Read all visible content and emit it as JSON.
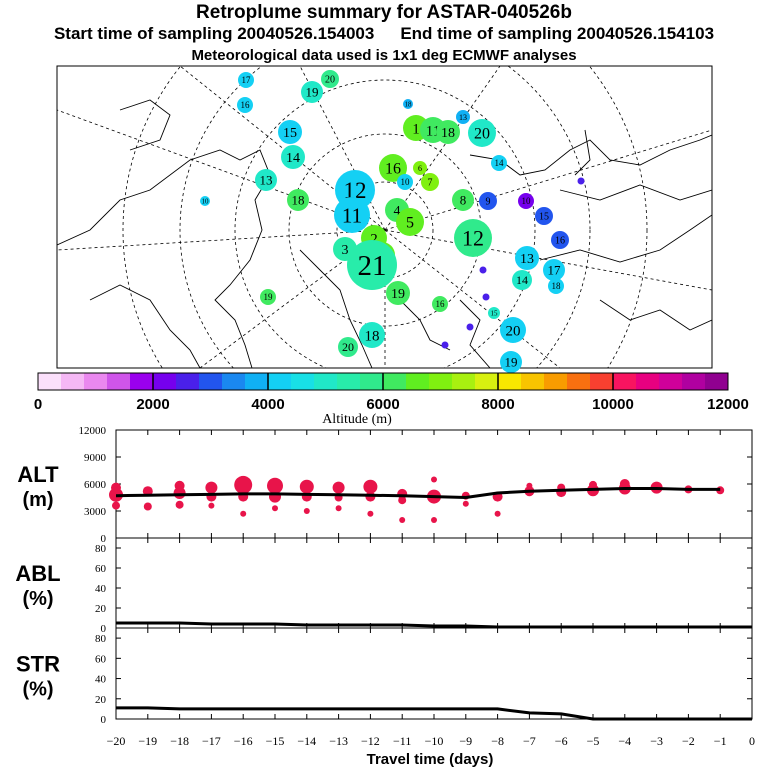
{
  "header": {
    "title": "Retroplume summary for ASTAR-040526b",
    "start_label": "Start time of sampling 20040526.154003",
    "end_label": "End time of sampling 20040526.154103",
    "met_label": "Meteorological data used is 1x1 deg ECMWF analyses"
  },
  "colorbar": {
    "ticks": [
      "0",
      "2000",
      "4000",
      "6000",
      "8000",
      "10000",
      "12000"
    ],
    "label": "Altitude (m)",
    "colors": [
      "#fbe0fb",
      "#f5b8f5",
      "#ea88ef",
      "#cf55ea",
      "#9a00ee",
      "#7600ee",
      "#4a20ea",
      "#2255ee",
      "#1a88f0",
      "#10b0f4",
      "#14d0f4",
      "#18e0e6",
      "#20e8c8",
      "#28ecaa",
      "#30ea8c",
      "#40ea60",
      "#60ee20",
      "#80f010",
      "#a8f010",
      "#d8f010",
      "#f8e800",
      "#f8c400",
      "#f89c00",
      "#f87010",
      "#f84030",
      "#f81460",
      "#e80080",
      "#d0009a",
      "#b000a0",
      "#900090"
    ]
  },
  "map": {
    "markers": [
      {
        "label": "17",
        "color": "#14d0f4"
      },
      {
        "label": "20",
        "color": "#30ea8c"
      },
      {
        "label": "16",
        "color": "#14d0f4"
      },
      {
        "label": "19",
        "color": "#20e8c8"
      },
      {
        "label": "18",
        "color": "#10b0f4"
      },
      {
        "label": "13",
        "color": "#10b0f4"
      },
      {
        "label": "15",
        "color": "#14d0f4"
      },
      {
        "label": "14",
        "color": "#20e8c8"
      },
      {
        "label": "13",
        "color": "#20e8c8"
      },
      {
        "label": "12",
        "color": "#14d0f4"
      },
      {
        "label": "11",
        "color": "#14d0f4"
      },
      {
        "label": "10",
        "color": "#14d0f4"
      },
      {
        "label": "18",
        "color": "#40ea60"
      },
      {
        "label": "1",
        "color": "#60ee20"
      },
      {
        "label": "16",
        "color": "#60ee20"
      },
      {
        "label": "11",
        "color": "#40ea60"
      },
      {
        "label": "18",
        "color": "#40ea60"
      },
      {
        "label": "20",
        "color": "#20e8c8"
      },
      {
        "label": "14",
        "color": "#14d0f4"
      },
      {
        "label": "7",
        "color": "#80f010"
      },
      {
        "label": "8",
        "color": "#40ea60"
      },
      {
        "label": "9",
        "color": "#2255ee"
      },
      {
        "label": "10",
        "color": "#7600ee"
      },
      {
        "label": "15",
        "color": "#2255ee"
      },
      {
        "label": "16",
        "color": "#2255ee"
      },
      {
        "label": "12",
        "color": "#30ea8c"
      },
      {
        "label": "13",
        "color": "#14d0f4"
      },
      {
        "label": "14",
        "color": "#20e8c8"
      },
      {
        "label": "17",
        "color": "#14d0f4"
      },
      {
        "label": "18",
        "color": "#14d0f4"
      },
      {
        "label": "4",
        "color": "#40ea60"
      },
      {
        "label": "2",
        "color": "#60ee20"
      },
      {
        "label": "1",
        "color": "#60ee20"
      },
      {
        "label": "21",
        "color": "#28ecaa"
      },
      {
        "label": "3",
        "color": "#28ecaa"
      },
      {
        "label": "19",
        "color": "#40ea60"
      },
      {
        "label": "16",
        "color": "#40ea60"
      },
      {
        "label": "15",
        "color": "#20e8c8"
      },
      {
        "label": "20",
        "color": "#14d0f4"
      },
      {
        "label": "18",
        "color": "#20e8c8"
      },
      {
        "label": "20",
        "color": "#30ea8c"
      },
      {
        "label": "19",
        "color": "#14d0f4"
      },
      {
        "label": "19",
        "color": "#40ea60"
      },
      {
        "label": "10",
        "color": "#14d0f4"
      },
      {
        "label": "6",
        "color": "#80f010"
      },
      {
        "label": "5",
        "color": "#60ee20"
      }
    ]
  },
  "chart_data": [
    {
      "type": "scatter",
      "panel": "ALT",
      "ylabel": "ALT (m)",
      "ylim": [
        0,
        12000
      ],
      "yticks": [
        "0",
        "3000",
        "6000",
        "9000",
        "12000"
      ],
      "marker_color": "#e8144a",
      "x": [
        -20,
        -19,
        -18,
        -17,
        -16,
        -15,
        -14,
        -13,
        -12,
        -11,
        -10,
        -9,
        -8,
        -7,
        -6,
        -5,
        -4,
        -3,
        -2,
        -1
      ],
      "median": [
        4700,
        4750,
        4800,
        4850,
        4900,
        4900,
        4850,
        4800,
        4750,
        4700,
        4600,
        4500,
        5000,
        5200,
        5300,
        5400,
        5500,
        5500,
        5400,
        5400
      ],
      "points": [
        [
          -20,
          4800
        ],
        [
          -20,
          5600
        ],
        [
          -20,
          3600
        ],
        [
          -19,
          5200
        ],
        [
          -19,
          3500
        ],
        [
          -18,
          5000
        ],
        [
          -18,
          5800
        ],
        [
          -18,
          3700
        ],
        [
          -17,
          5600
        ],
        [
          -17,
          4600
        ],
        [
          -17,
          3600
        ],
        [
          -16,
          5900
        ],
        [
          -16,
          4600
        ],
        [
          -16,
          2700
        ],
        [
          -15,
          5800
        ],
        [
          -15,
          4600
        ],
        [
          -15,
          3300
        ],
        [
          -14,
          5700
        ],
        [
          -14,
          4600
        ],
        [
          -14,
          3000
        ],
        [
          -13,
          5600
        ],
        [
          -13,
          4500
        ],
        [
          -13,
          3300
        ],
        [
          -12,
          5700
        ],
        [
          -12,
          4600
        ],
        [
          -12,
          2700
        ],
        [
          -11,
          4900
        ],
        [
          -11,
          4200
        ],
        [
          -11,
          2000
        ],
        [
          -10,
          4600
        ],
        [
          -10,
          6500
        ],
        [
          -10,
          2000
        ],
        [
          -9,
          4700
        ],
        [
          -9,
          3800
        ],
        [
          -8,
          4600
        ],
        [
          -8,
          2700
        ],
        [
          -7,
          5200
        ],
        [
          -7,
          5800
        ],
        [
          -6,
          5100
        ],
        [
          -6,
          5600
        ],
        [
          -5,
          5300
        ],
        [
          -5,
          5900
        ],
        [
          -4,
          5500
        ],
        [
          -4,
          6000
        ],
        [
          -3,
          5600
        ],
        [
          -2,
          5400
        ],
        [
          -1,
          5300
        ]
      ],
      "point_sizes": [
        7,
        5,
        4,
        5,
        4,
        6,
        5,
        4,
        6,
        5,
        3,
        9,
        5,
        3,
        8,
        6,
        3,
        7,
        5,
        3,
        6,
        4,
        3,
        7,
        5,
        3,
        5,
        4,
        3,
        7,
        3,
        3,
        4,
        3,
        5,
        3,
        5,
        3,
        5,
        4,
        6,
        4,
        6,
        5,
        6,
        4,
        4
      ]
    },
    {
      "type": "line",
      "panel": "ABL",
      "ylabel": "ABL (%)",
      "ylim": [
        0,
        90
      ],
      "yticks": [
        "0",
        "20",
        "40",
        "60",
        "80"
      ],
      "x": [
        -20,
        -19,
        -18,
        -17,
        -16,
        -15,
        -14,
        -13,
        -12,
        -11,
        -10,
        -9,
        -8,
        -7,
        -6,
        -5,
        -4,
        -3,
        -2,
        -1,
        0
      ],
      "values": [
        5,
        5,
        5,
        4,
        4,
        4,
        3,
        3,
        3,
        3,
        2,
        2,
        1,
        1,
        1,
        1,
        1,
        1,
        1,
        1,
        1
      ]
    },
    {
      "type": "line",
      "panel": "STR",
      "ylabel": "STR (%)",
      "ylim": [
        0,
        90
      ],
      "yticks": [
        "0",
        "20",
        "40",
        "60",
        "80"
      ],
      "x": [
        -20,
        -19,
        -18,
        -17,
        -16,
        -15,
        -14,
        -13,
        -12,
        -11,
        -10,
        -9,
        -8,
        -7,
        -6,
        -5,
        -4,
        -3,
        -2,
        -1,
        0
      ],
      "values": [
        11,
        11,
        10,
        10,
        10,
        10,
        10,
        10,
        10,
        10,
        10,
        10,
        10,
        6,
        5,
        0,
        0,
        0,
        0,
        0,
        0
      ],
      "xlabel": "Travel time (days)",
      "xticks": [
        "−20",
        "−19",
        "−18",
        "−17",
        "−16",
        "−15",
        "−14",
        "−13",
        "−12",
        "−11",
        "−10",
        "−9",
        "−8",
        "−7",
        "−6",
        "−5",
        "−4",
        "−3",
        "−2",
        "−1",
        "0"
      ]
    }
  ]
}
